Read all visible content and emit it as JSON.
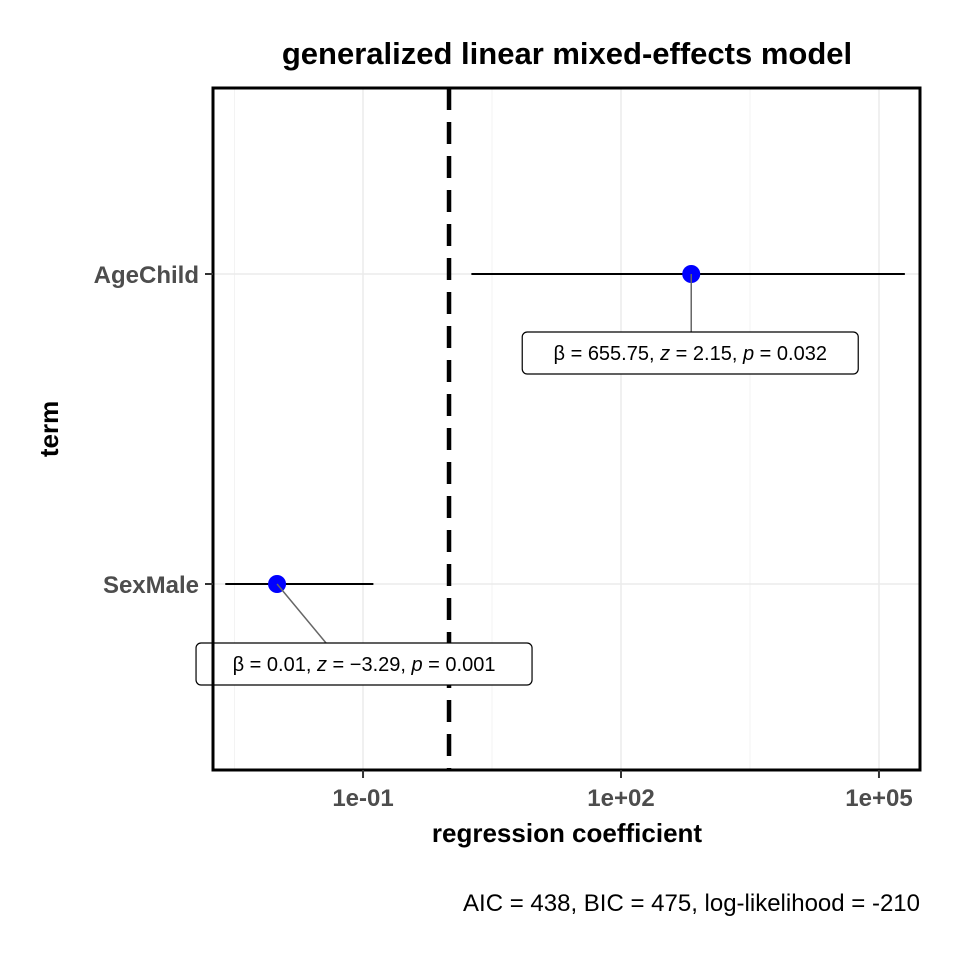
{
  "chart_data": {
    "type": "scatter",
    "title": "generalized linear mixed-effects model",
    "xlabel": "regression coefficient",
    "ylabel": "term",
    "x_scale": "log10",
    "xlim": [
      0.0018,
      300000
    ],
    "x_ticks": [
      {
        "value": 0.1,
        "label": "1e-01"
      },
      {
        "value": 100,
        "label": "1e+02"
      },
      {
        "value": 100000,
        "label": "1e+05"
      }
    ],
    "x_minor_ticks": [
      0.0032,
      3.16,
      3162
    ],
    "reference_line": 1,
    "grid": true,
    "categories": [
      "AgeChild",
      "SexMale"
    ],
    "points": [
      {
        "term": "AgeChild",
        "estimate": 655.75,
        "conf_low": 1.82,
        "conf_high": 200000,
        "label": {
          "beta": "655.75",
          "z": "2.15",
          "p": "0.032"
        }
      },
      {
        "term": "SexMale",
        "estimate": 0.01,
        "conf_low": 0.0025,
        "conf_high": 0.132,
        "label": {
          "beta": "0.01",
          "z": "−3.29",
          "p": "0.001"
        }
      }
    ],
    "caption": "AIC = 438, BIC = 475, log-likelihood = -210",
    "point_color": "#0000ff"
  }
}
